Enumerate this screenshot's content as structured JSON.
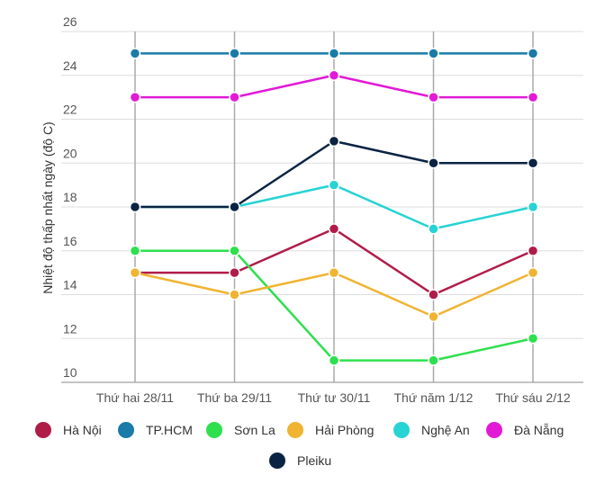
{
  "chart_data": {
    "type": "line",
    "title": "",
    "xlabel": "",
    "ylabel": "Nhiệt độ thấp nhất ngày (độ C)",
    "ylim": [
      10,
      26
    ],
    "yticks": [
      10,
      12,
      14,
      16,
      18,
      20,
      22,
      24,
      26
    ],
    "grid": true,
    "legend_position": "bottom",
    "categories": [
      "Thứ hai 28/11",
      "Thứ ba 29/11",
      "Thứ tư 30/11",
      "Thứ năm 1/12",
      "Thứ sáu 2/12"
    ],
    "series": [
      {
        "name": "Hà Nội",
        "color": "#b01c48",
        "values": [
          15,
          15,
          17,
          14,
          16
        ]
      },
      {
        "name": "TP.HCM",
        "color": "#1a7ba8",
        "values": [
          25,
          25,
          25,
          25,
          25
        ]
      },
      {
        "name": "Sơn La",
        "color": "#2ee04e",
        "values": [
          16,
          16,
          11,
          11,
          12
        ]
      },
      {
        "name": "Hải Phòng",
        "color": "#f0b432",
        "values": [
          15,
          14,
          15,
          13,
          15
        ]
      },
      {
        "name": "Nghệ An",
        "color": "#27d3d3",
        "values": [
          18,
          18,
          19,
          17,
          18
        ]
      },
      {
        "name": "Đà Nẵng",
        "color": "#e21ad6",
        "values": [
          23,
          23,
          24,
          23,
          23
        ]
      },
      {
        "name": "Pleiku",
        "color": "#0a2342",
        "values": [
          18,
          18,
          21,
          20,
          20
        ]
      }
    ]
  }
}
